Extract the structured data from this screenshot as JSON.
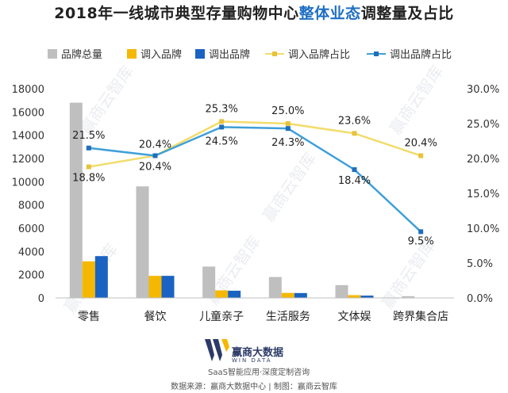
{
  "title": {
    "prefix": "2018年一线城市典型存量购物中心",
    "highlight": "整体业态",
    "suffix": "调整量及占比"
  },
  "colors": {
    "total": "#bfbfbf",
    "in": "#f5b800",
    "out": "#1a63c2",
    "in_ratio": "#f3dc6b",
    "out_ratio": "#3f9fd9",
    "in_ratio_marker": "#e8c23c",
    "out_ratio_marker": "#1f6fb8"
  },
  "chart_data": {
    "type": "bar",
    "categories": [
      "零售",
      "餐饮",
      "儿童亲子",
      "生活服务",
      "文体娱",
      "跨界集合店"
    ],
    "series": [
      {
        "name": "品牌总量",
        "type": "bar",
        "axis": "left",
        "values": [
          16800,
          9600,
          2700,
          1800,
          1100,
          150
        ]
      },
      {
        "name": "调入品牌",
        "type": "bar",
        "axis": "left",
        "values": [
          3150,
          1900,
          650,
          430,
          240,
          20
        ]
      },
      {
        "name": "调出品牌",
        "type": "bar",
        "axis": "left",
        "values": [
          3600,
          1900,
          620,
          420,
          200,
          20
        ]
      },
      {
        "name": "调入品牌占比",
        "type": "line",
        "axis": "right",
        "values": [
          18.8,
          20.4,
          25.3,
          25.0,
          23.6,
          20.4
        ],
        "labels": [
          "18.8%",
          "20.4%",
          "25.3%",
          "25.0%",
          "23.6%",
          "20.4%"
        ]
      },
      {
        "name": "调出品牌占比",
        "type": "line",
        "axis": "right",
        "values": [
          21.5,
          20.4,
          24.5,
          24.3,
          18.4,
          9.5
        ],
        "labels": [
          "21.5%",
          "20.4%",
          "24.5%",
          "24.3%",
          "18.4%",
          "9.5%"
        ]
      }
    ],
    "y_left": {
      "min": 0,
      "max": 18000,
      "ticks": [
        "0",
        "2000",
        "4000",
        "6000",
        "8000",
        "10000",
        "12000",
        "14000",
        "16000",
        "18000"
      ]
    },
    "y_right": {
      "min": 0,
      "max": 30,
      "ticks": [
        "0.0%",
        "5.0%",
        "10.0%",
        "15.0%",
        "20.0%",
        "25.0%",
        "30.0%"
      ]
    },
    "legend_position": "top",
    "grid": false
  },
  "watermark": "赢商云智库",
  "footer": {
    "brand": "赢商大数据",
    "brand_en": "WIN DATA",
    "tagline": "SaaS智能应用·深度定制咨询",
    "source": "数据来源：赢商大数据中心 | 制图：赢商云智库"
  }
}
